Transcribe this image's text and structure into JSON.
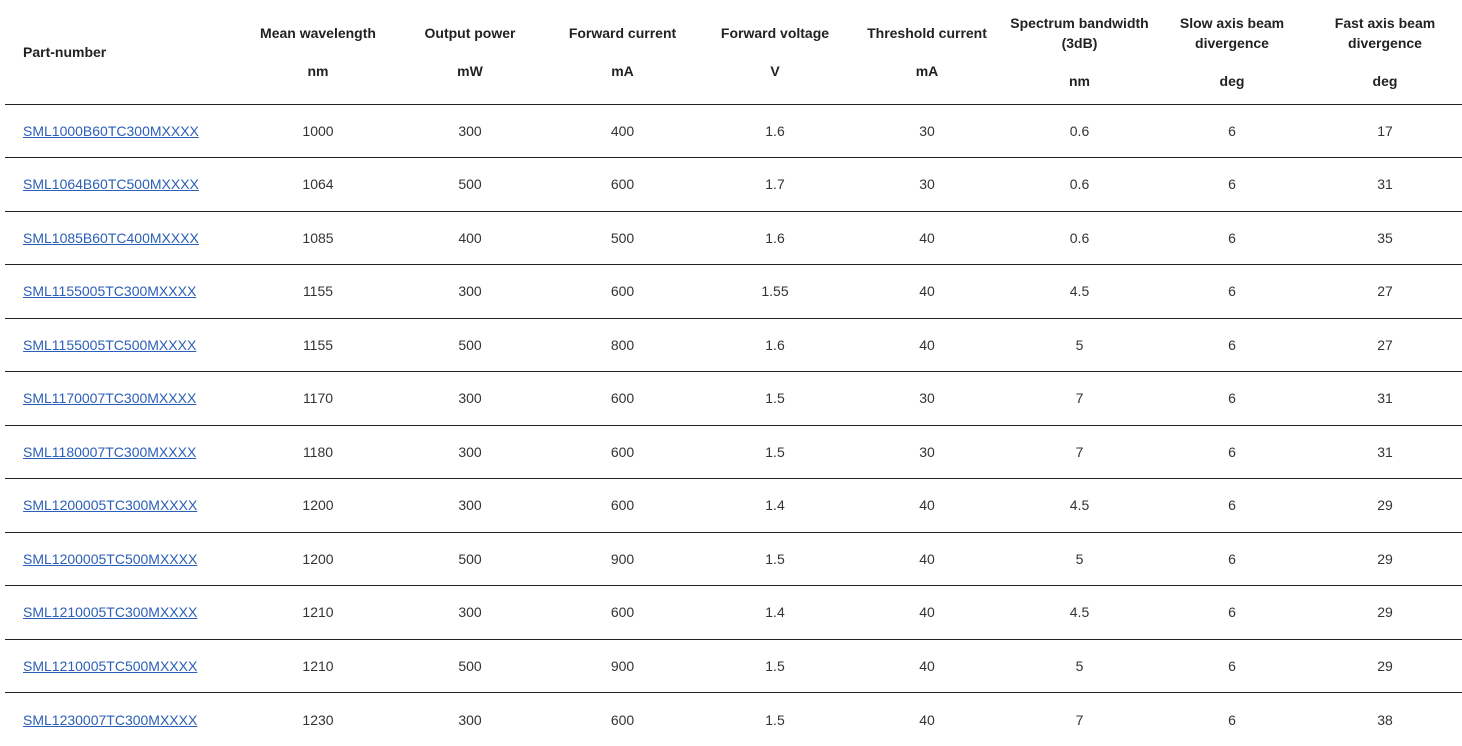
{
  "table": {
    "headers": [
      {
        "title": "Part-number",
        "unit": ""
      },
      {
        "title": "Mean wavelength",
        "unit": "nm"
      },
      {
        "title": "Output power",
        "unit": "mW"
      },
      {
        "title": "Forward current",
        "unit": "mA"
      },
      {
        "title": "Forward voltage",
        "unit": "V"
      },
      {
        "title": "Threshold current",
        "unit": "mA"
      },
      {
        "title": "Spectrum bandwidth (3dB)",
        "unit": "nm"
      },
      {
        "title": "Slow axis beam divergence",
        "unit": "deg"
      },
      {
        "title": "Fast axis beam divergence",
        "unit": "deg"
      }
    ],
    "rows": [
      [
        "SML1000B60TC300MXXXX",
        "1000",
        "300",
        "400",
        "1.6",
        "30",
        "0.6",
        "6",
        "17"
      ],
      [
        "SML1064B60TC500MXXXX",
        "1064",
        "500",
        "600",
        "1.7",
        "30",
        "0.6",
        "6",
        "31"
      ],
      [
        "SML1085B60TC400MXXXX",
        "1085",
        "400",
        "500",
        "1.6",
        "40",
        "0.6",
        "6",
        "35"
      ],
      [
        "SML1155005TC300MXXXX",
        "1155",
        "300",
        "600",
        "1.55",
        "40",
        "4.5",
        "6",
        "27"
      ],
      [
        "SML1155005TC500MXXXX",
        "1155",
        "500",
        "800",
        "1.6",
        "40",
        "5",
        "6",
        "27"
      ],
      [
        "SML1170007TC300MXXXX",
        "1170",
        "300",
        "600",
        "1.5",
        "30",
        "7",
        "6",
        "31"
      ],
      [
        "SML1180007TC300MXXXX",
        "1180",
        "300",
        "600",
        "1.5",
        "30",
        "7",
        "6",
        "31"
      ],
      [
        "SML1200005TC300MXXXX",
        "1200",
        "300",
        "600",
        "1.4",
        "40",
        "4.5",
        "6",
        "29"
      ],
      [
        "SML1200005TC500MXXXX",
        "1200",
        "500",
        "900",
        "1.5",
        "40",
        "5",
        "6",
        "29"
      ],
      [
        "SML1210005TC300MXXXX",
        "1210",
        "300",
        "600",
        "1.4",
        "40",
        "4.5",
        "6",
        "29"
      ],
      [
        "SML1210005TC500MXXXX",
        "1210",
        "500",
        "900",
        "1.5",
        "40",
        "5",
        "6",
        "29"
      ],
      [
        "SML1230007TC300MXXXX",
        "1230",
        "300",
        "600",
        "1.5",
        "40",
        "7",
        "6",
        "38"
      ]
    ]
  },
  "colors": {
    "link": "#2b5fb8",
    "rule": "#222222",
    "text": "#333333"
  }
}
